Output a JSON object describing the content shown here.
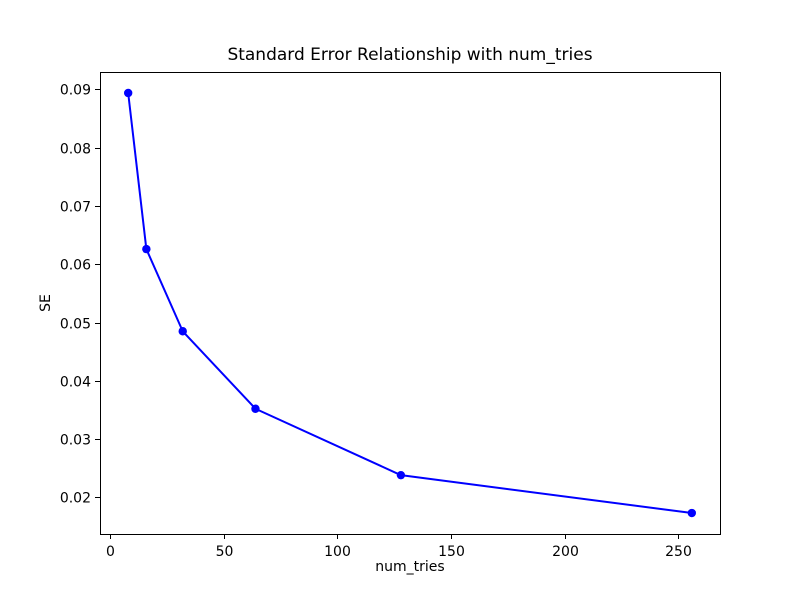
{
  "chart_data": {
    "type": "line",
    "title": "Standard Error Relationship with num_tries",
    "xlabel": "num_tries",
    "ylabel": "SE",
    "series": [
      {
        "name": "SE",
        "x": [
          8,
          16,
          32,
          64,
          128,
          256
        ],
        "y": [
          0.0894,
          0.0626,
          0.0485,
          0.0352,
          0.0238,
          0.0173
        ]
      }
    ],
    "xlim": [
      -4.4,
      268.4
    ],
    "ylim": [
      0.0137,
      0.093
    ],
    "xticks": [
      0,
      50,
      100,
      150,
      200,
      250
    ],
    "yticks": [
      0.02,
      0.03,
      0.04,
      0.05,
      0.06,
      0.07,
      0.08,
      0.09
    ],
    "ytick_decimals": 2,
    "grid": false,
    "legend": null,
    "line_color": "#0000ff",
    "marker": "o",
    "background_color": "#ffffff",
    "axes_color": "#000000"
  }
}
